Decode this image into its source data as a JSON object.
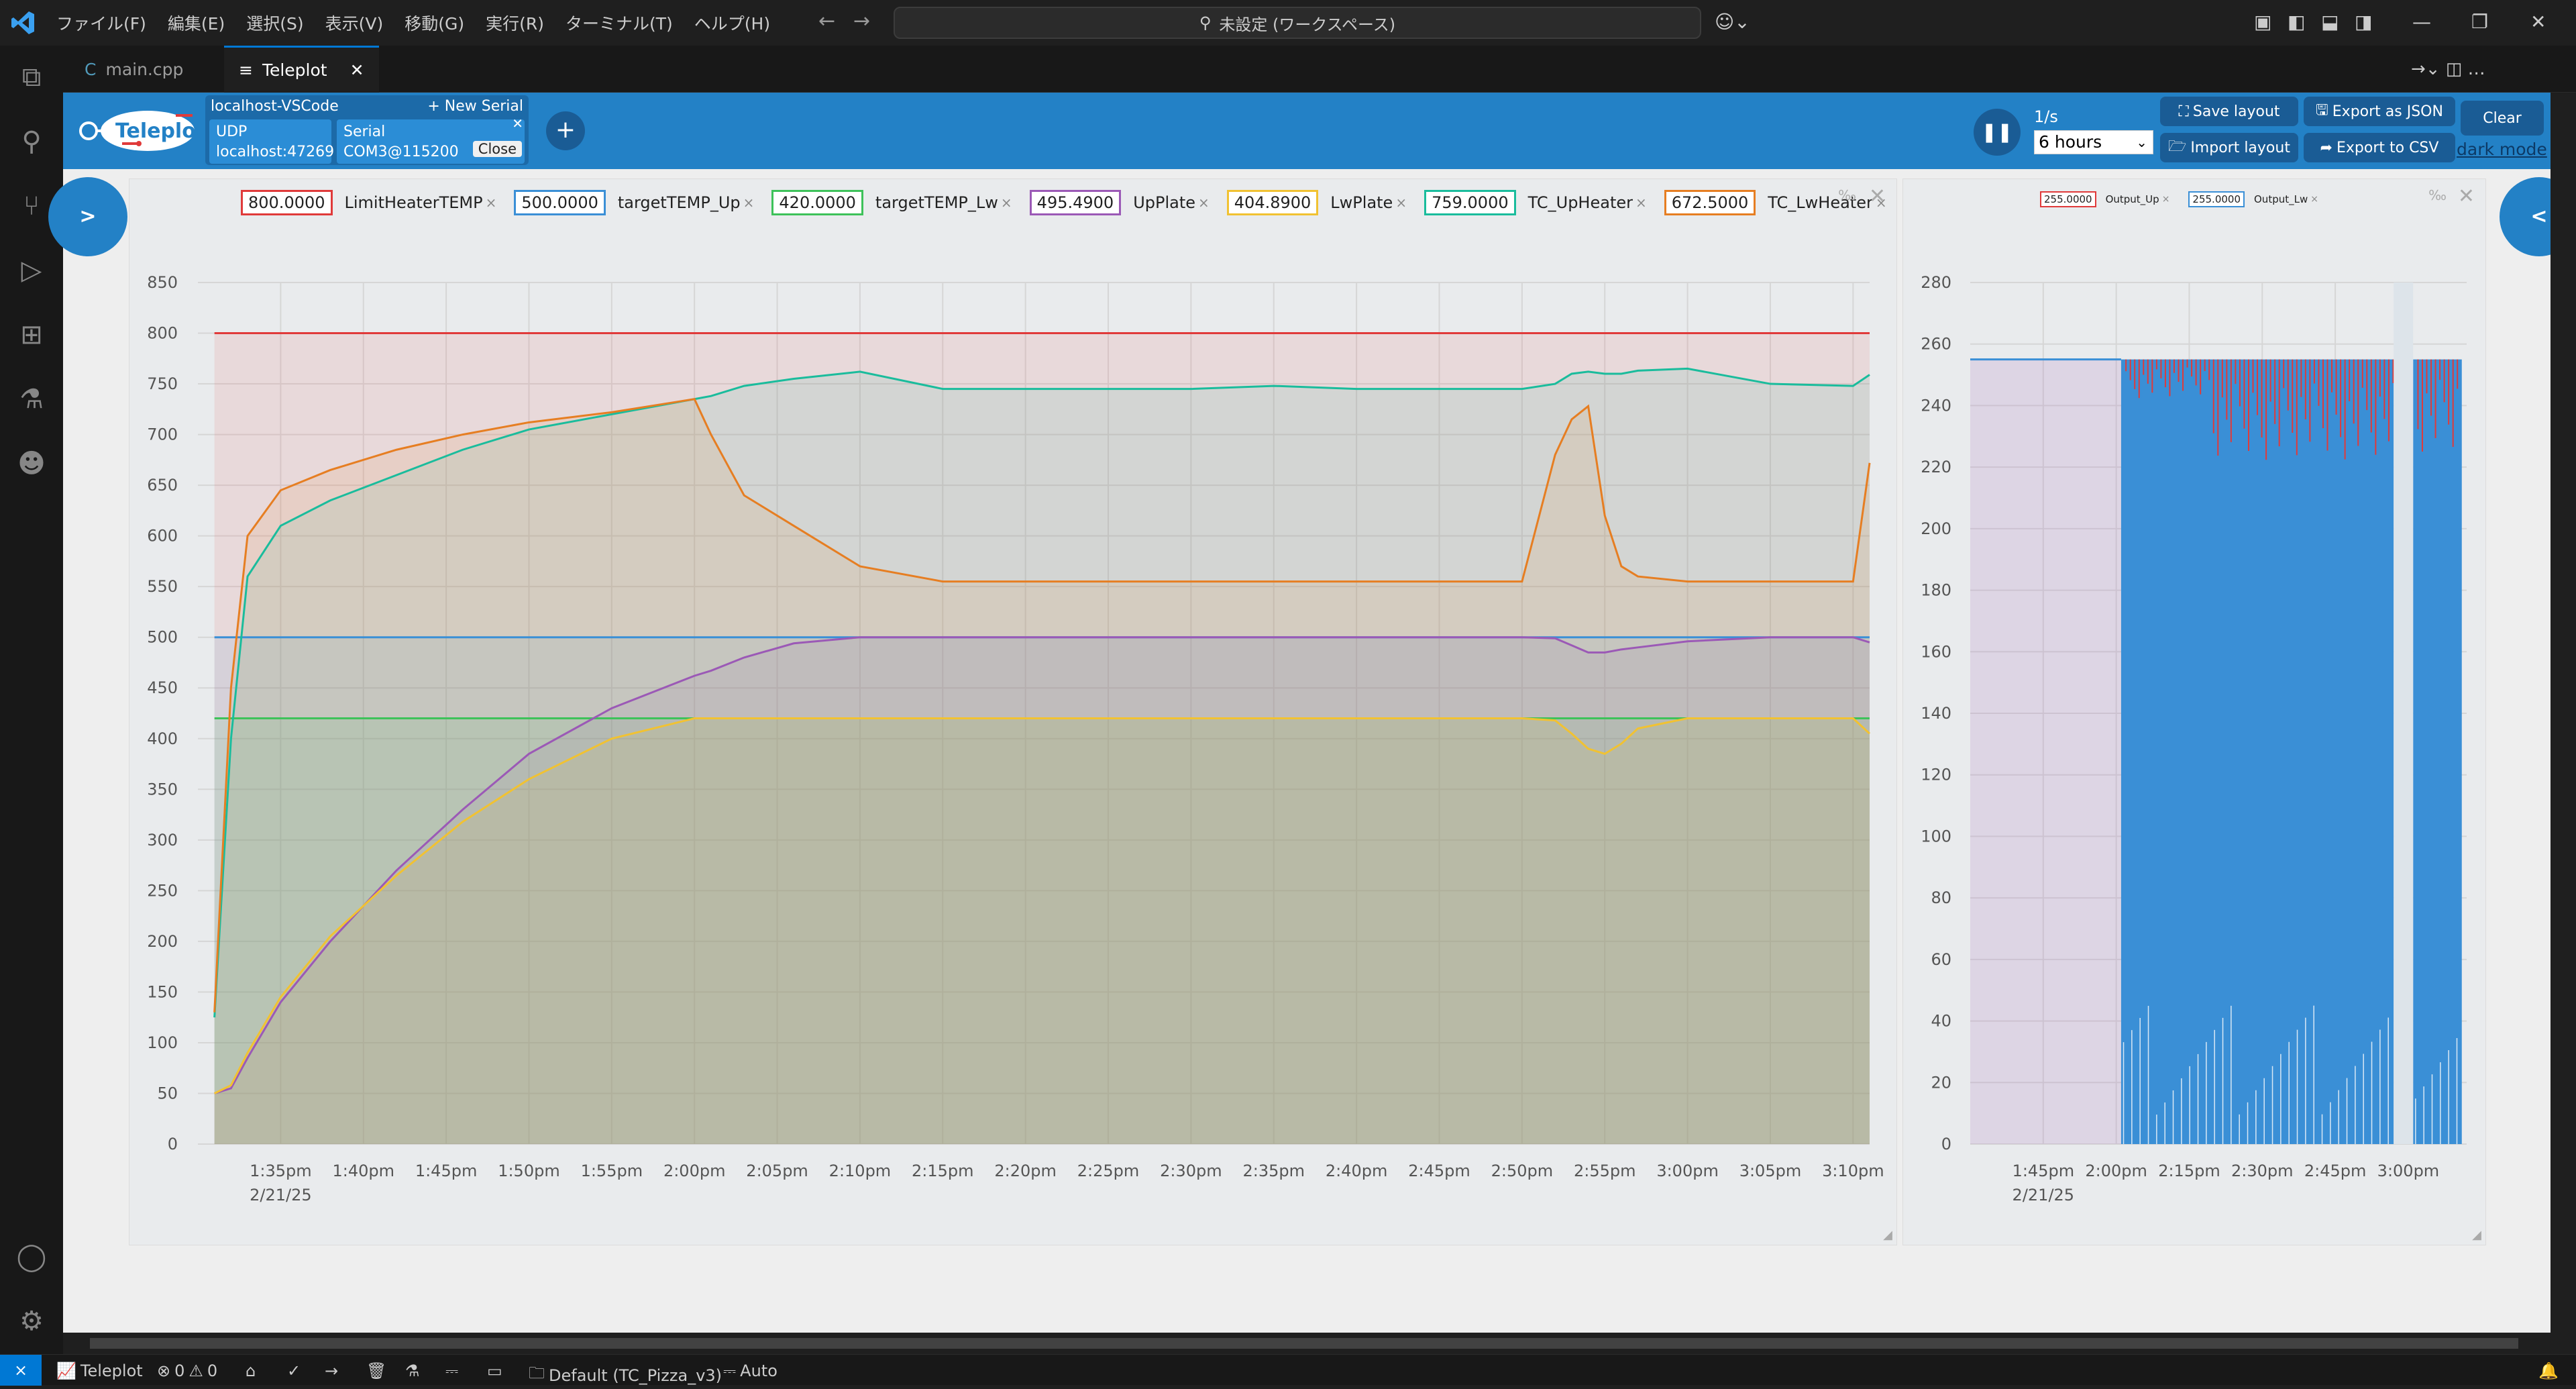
{
  "titlebar": {
    "menus": [
      "ファイル(F)",
      "編集(E)",
      "選択(S)",
      "表示(V)",
      "移動(G)",
      "実行(R)",
      "ターミナル(T)",
      "ヘルプ(H)"
    ],
    "search_text": "未設定 (ワークスペース)"
  },
  "tabs": [
    {
      "label": "main.cpp",
      "icon": "cpp-file-icon"
    },
    {
      "label": "Teleplot",
      "icon": "preview-icon"
    }
  ],
  "header": {
    "conn_label": "localhost-VSCode",
    "new_serial": "+ New Serial",
    "udp_label": "UDP",
    "udp_addr": "localhost:47269",
    "serial_label": "Serial",
    "serial_port": "COM3@115200",
    "close_label": "Close",
    "add_label": "+",
    "rate": "1/s",
    "range": "6 hours",
    "save_layout": "Save layout",
    "export_json": "Export as JSON",
    "clear": "Clear",
    "import_layout": "Import layout",
    "export_csv": "Export to CSV",
    "dark_mode": "dark mode",
    "left_toggle": ">",
    "right_toggle": "<"
  },
  "main_chart_legend": [
    {
      "value": "800.0000",
      "name": "LimitHeaterTEMP",
      "color": "#e03a3a"
    },
    {
      "value": "500.0000",
      "name": "targetTEMP_Up",
      "color": "#3a8fd6"
    },
    {
      "value": "420.0000",
      "name": "targetTEMP_Lw",
      "color": "#3ec25a"
    },
    {
      "value": "495.4900",
      "name": "UpPlate",
      "color": "#9b59b6"
    },
    {
      "value": "404.8900",
      "name": "LwPlate",
      "color": "#f1c232"
    },
    {
      "value": "759.0000",
      "name": "TC_UpHeater",
      "color": "#1abc9c"
    },
    {
      "value": "672.5000",
      "name": "TC_LwHeater",
      "color": "#e67e22"
    }
  ],
  "side_chart_legend": [
    {
      "value": "255.0000",
      "name": "Output_Up",
      "color": "#e03a3a"
    },
    {
      "value": "255.0000",
      "name": "Output_Lw",
      "color": "#3a8fd6"
    }
  ],
  "chart_data": [
    {
      "type": "area",
      "xlabel": "",
      "ylabel": "",
      "x_ticks": [
        "1:35pm",
        "1:40pm",
        "1:45pm",
        "1:50pm",
        "1:55pm",
        "2:00pm",
        "2:05pm",
        "2:10pm",
        "2:15pm",
        "2:20pm",
        "2:25pm",
        "2:30pm",
        "2:35pm",
        "2:40pm",
        "2:45pm",
        "2:50pm",
        "2:55pm",
        "3:00pm",
        "3:05pm",
        "3:10pm"
      ],
      "x_date": "2/21/25",
      "ylim": [
        0,
        850
      ],
      "y_ticks": [
        0,
        50,
        100,
        150,
        200,
        250,
        300,
        350,
        400,
        450,
        500,
        550,
        600,
        650,
        700,
        750,
        800,
        850
      ],
      "x_minutes_after_1pm": [
        31,
        32,
        33,
        35,
        38,
        42,
        46,
        50,
        55,
        60,
        61,
        63,
        66,
        70,
        75,
        80,
        85,
        90,
        95,
        100,
        105,
        110,
        112,
        113,
        114,
        115,
        116,
        117,
        120,
        125,
        130,
        131
      ],
      "series": [
        {
          "name": "LimitHeaterTEMP",
          "color": "#e03a3a",
          "values": [
            800,
            800,
            800,
            800,
            800,
            800,
            800,
            800,
            800,
            800,
            800,
            800,
            800,
            800,
            800,
            800,
            800,
            800,
            800,
            800,
            800,
            800,
            800,
            800,
            800,
            800,
            800,
            800,
            800,
            800,
            800,
            800
          ]
        },
        {
          "name": "targetTEMP_Up",
          "color": "#3a8fd6",
          "values": [
            500,
            500,
            500,
            500,
            500,
            500,
            500,
            500,
            500,
            500,
            500,
            500,
            500,
            500,
            500,
            500,
            500,
            500,
            500,
            500,
            500,
            500,
            500,
            500,
            500,
            500,
            500,
            500,
            500,
            500,
            500,
            500
          ]
        },
        {
          "name": "targetTEMP_Lw",
          "color": "#3ec25a",
          "values": [
            420,
            420,
            420,
            420,
            420,
            420,
            420,
            420,
            420,
            420,
            420,
            420,
            420,
            420,
            420,
            420,
            420,
            420,
            420,
            420,
            420,
            420,
            420,
            420,
            420,
            420,
            420,
            420,
            420,
            420,
            420,
            420
          ]
        },
        {
          "name": "UpPlate",
          "color": "#9b59b6",
          "values": [
            50,
            55,
            85,
            140,
            200,
            270,
            330,
            385,
            430,
            462,
            467,
            480,
            494,
            500,
            500,
            500,
            500,
            500,
            500,
            500,
            500,
            500,
            499,
            492,
            485,
            485,
            488,
            490,
            496,
            500,
            500,
            495
          ]
        },
        {
          "name": "LwPlate",
          "color": "#f1c232",
          "values": [
            50,
            58,
            90,
            145,
            205,
            265,
            318,
            360,
            400,
            420,
            420,
            420,
            420,
            420,
            420,
            420,
            420,
            420,
            420,
            420,
            420,
            420,
            418,
            405,
            390,
            385,
            395,
            410,
            420,
            420,
            420,
            405
          ]
        },
        {
          "name": "TC_UpHeater",
          "color": "#1abc9c",
          "values": [
            125,
            400,
            560,
            610,
            635,
            660,
            685,
            705,
            720,
            735,
            738,
            748,
            755,
            762,
            745,
            745,
            745,
            745,
            748,
            745,
            745,
            745,
            750,
            760,
            762,
            760,
            760,
            763,
            765,
            750,
            748,
            759
          ]
        },
        {
          "name": "TC_LwHeater",
          "color": "#e67e22",
          "values": [
            130,
            450,
            600,
            645,
            665,
            685,
            700,
            712,
            722,
            735,
            700,
            640,
            610,
            570,
            555,
            555,
            555,
            555,
            555,
            555,
            555,
            555,
            680,
            715,
            728,
            620,
            570,
            560,
            555,
            555,
            555,
            672
          ]
        }
      ]
    },
    {
      "type": "area",
      "xlabel": "",
      "ylabel": "",
      "x_ticks": [
        "1:45pm",
        "2:00pm",
        "2:15pm",
        "2:30pm",
        "2:45pm",
        "3:00pm"
      ],
      "x_date": "2/21/25",
      "ylim": [
        0,
        280
      ],
      "y_ticks": [
        0,
        20,
        40,
        60,
        80,
        100,
        120,
        140,
        160,
        180,
        200,
        220,
        240,
        260,
        280
      ],
      "series": [
        {
          "name": "Output_Up",
          "color": "#e03a3a",
          "values": [
            255,
            255,
            255,
            0,
            255,
            0,
            255,
            255
          ]
        },
        {
          "name": "Output_Lw",
          "color": "#3a8fd6",
          "values": [
            255,
            255,
            255,
            0,
            255,
            0,
            255,
            255
          ]
        }
      ]
    }
  ],
  "statusbar": {
    "teleplot": "Teleplot",
    "errors": "0",
    "warnings": "0",
    "kit": "Default (TC_Pizza_v3)",
    "auto": "Auto"
  }
}
